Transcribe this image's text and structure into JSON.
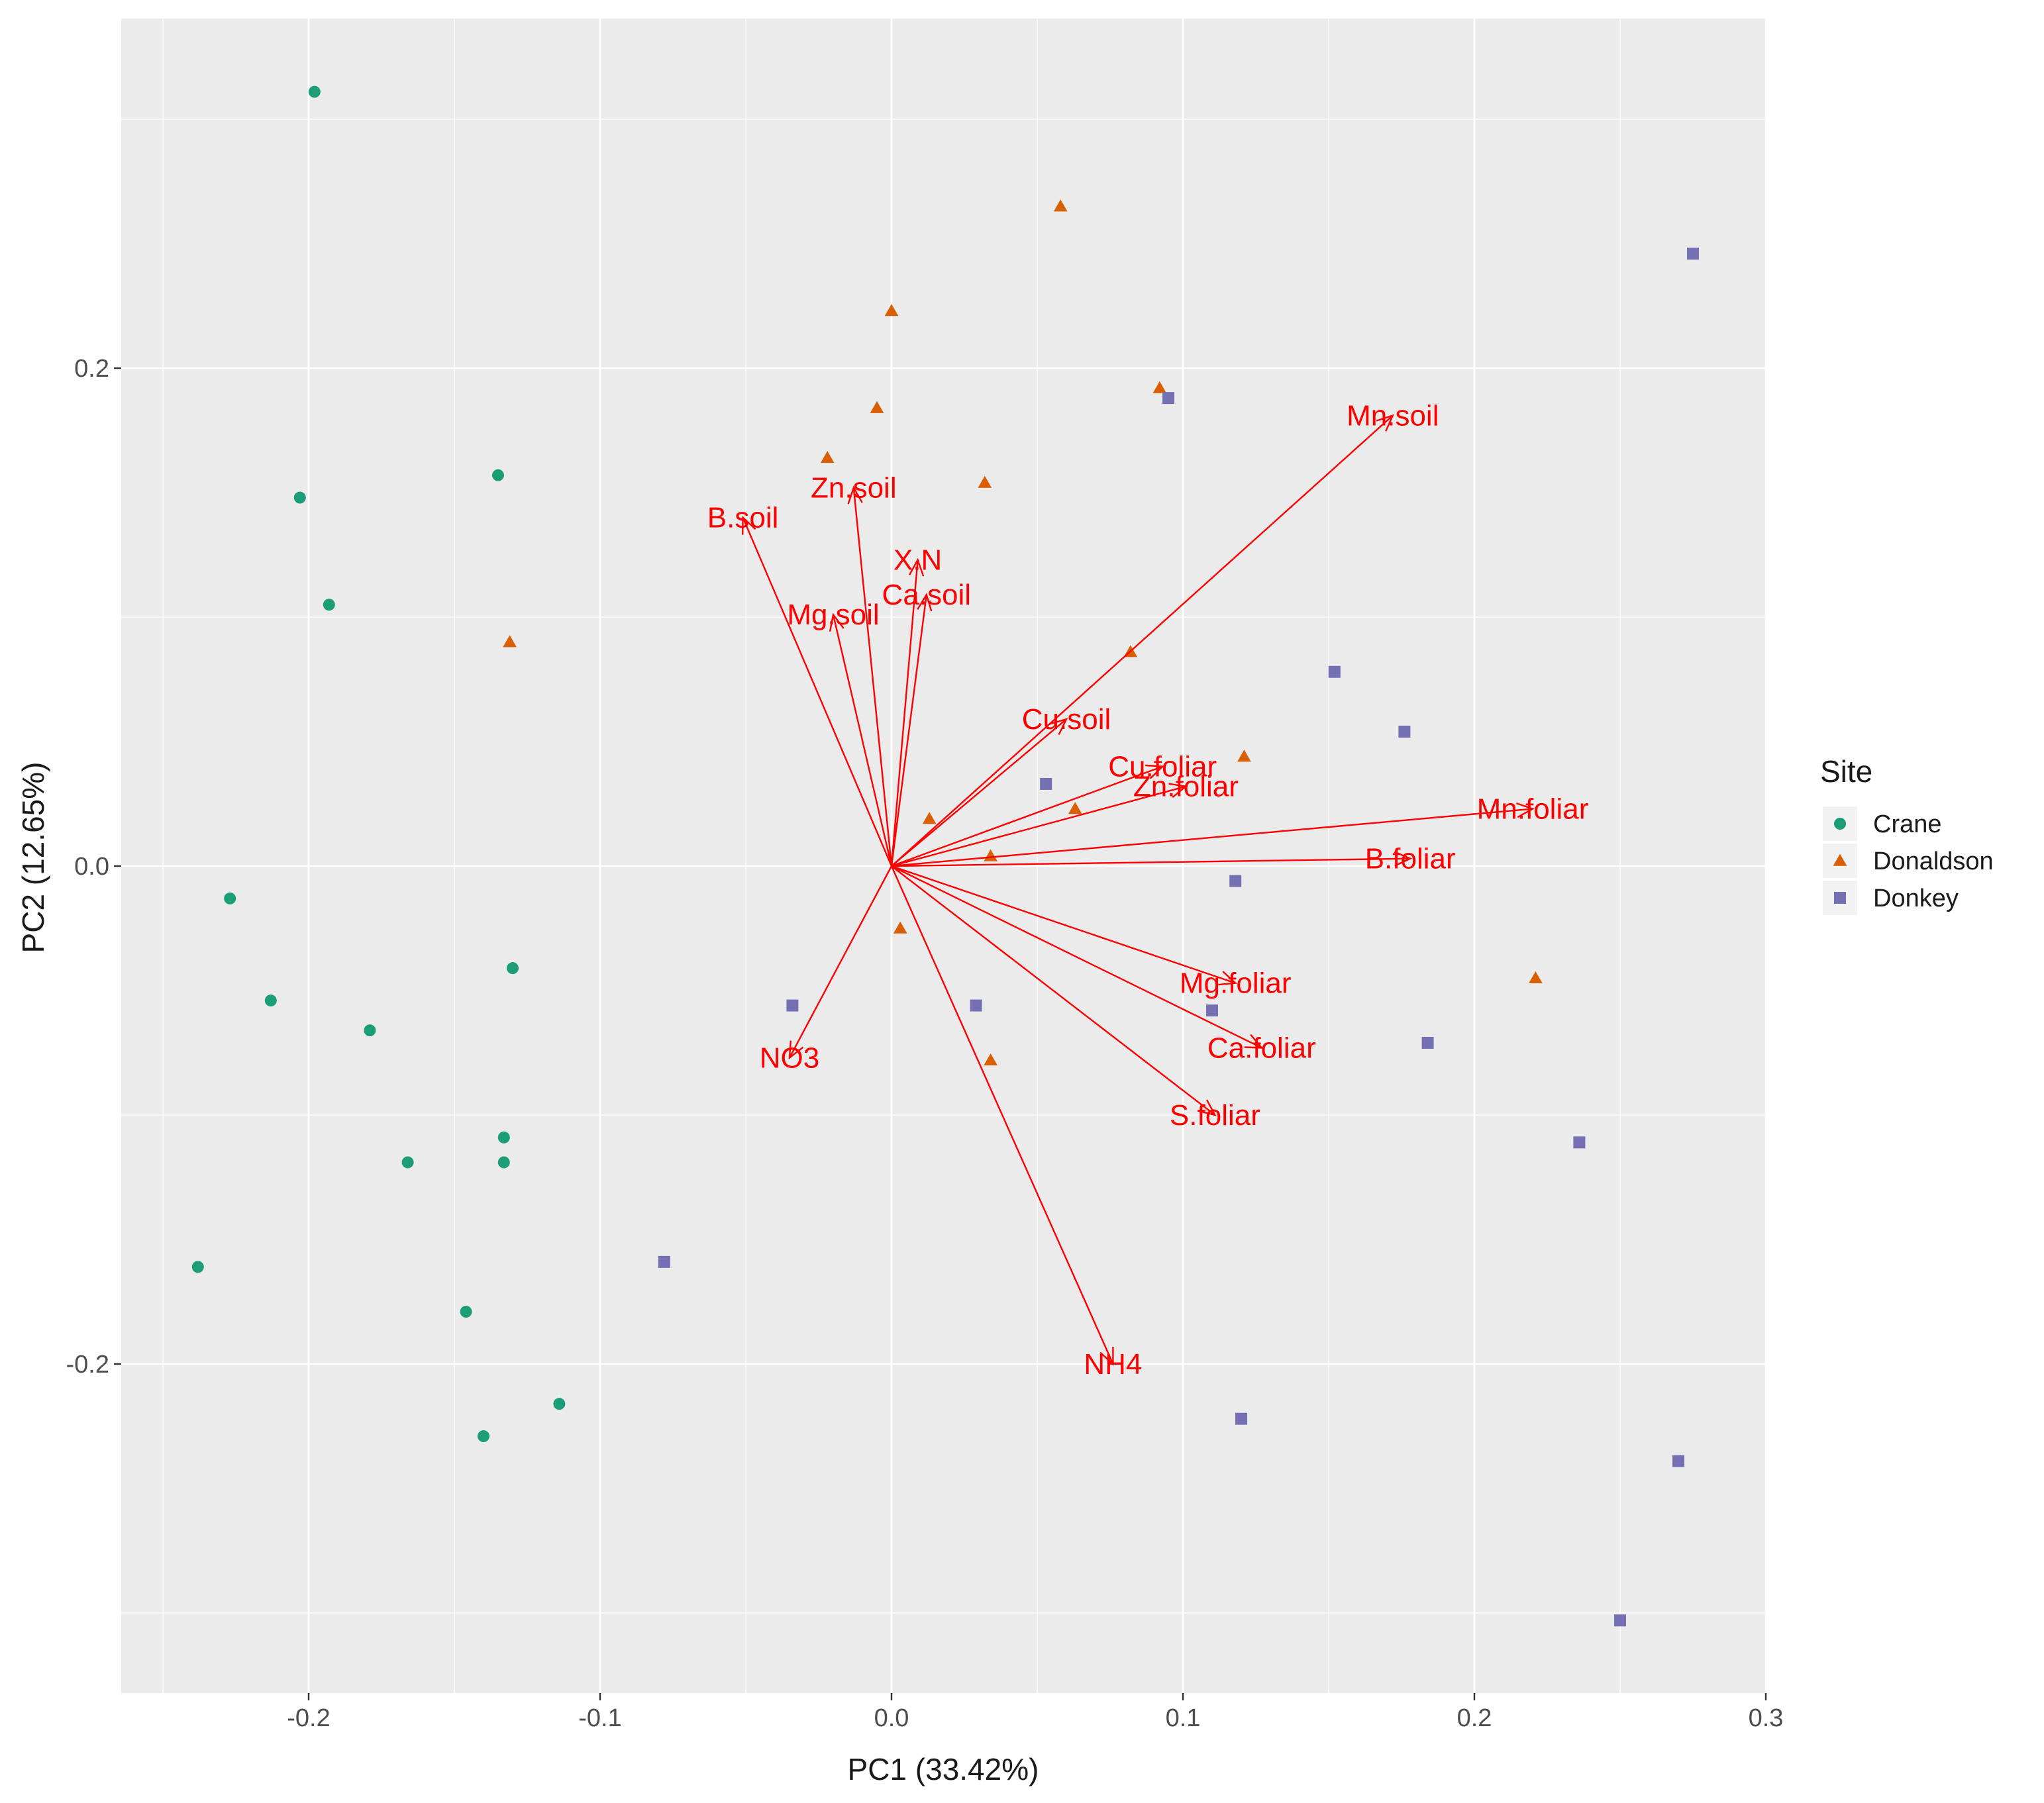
{
  "chart_data": {
    "type": "scatter",
    "subtype": "pca-biplot",
    "xlabel": "PC1 (33.42%)",
    "ylabel": "PC2 (12.65%)",
    "xlim": [
      -0.265,
      0.3
    ],
    "ylim": [
      -0.332,
      0.345
    ],
    "xticks": [
      -0.2,
      -0.1,
      0.0,
      0.1,
      0.2,
      0.3
    ],
    "xtick_labels": [
      "-0.2",
      "-0.1",
      "0.0",
      "0.1",
      "0.2",
      "0.3"
    ],
    "yticks": [
      -0.2,
      0.0,
      0.2
    ],
    "ytick_labels": [
      "-0.2",
      "0.0",
      "0.2"
    ],
    "grid": true,
    "legend": {
      "title": "Site",
      "position": "right",
      "entries": [
        {
          "label": "Crane",
          "color": "#1b9e77",
          "shape": "circle"
        },
        {
          "label": "Donaldson",
          "color": "#d95f02",
          "shape": "triangle"
        },
        {
          "label": "Donkey",
          "color": "#7570b3",
          "shape": "square"
        }
      ]
    },
    "series": [
      {
        "name": "Crane",
        "color": "#1b9e77",
        "shape": "circle",
        "points": [
          [
            -0.198,
            0.311
          ],
          [
            -0.203,
            0.148
          ],
          [
            -0.193,
            0.105
          ],
          [
            -0.135,
            0.157
          ],
          [
            -0.227,
            -0.013
          ],
          [
            -0.213,
            -0.054
          ],
          [
            -0.179,
            -0.066
          ],
          [
            -0.13,
            -0.041
          ],
          [
            -0.166,
            -0.119
          ],
          [
            -0.133,
            -0.109
          ],
          [
            -0.133,
            -0.119
          ],
          [
            -0.238,
            -0.161
          ],
          [
            -0.146,
            -0.179
          ],
          [
            -0.114,
            -0.216
          ],
          [
            -0.14,
            -0.229
          ]
        ]
      },
      {
        "name": "Donaldson",
        "color": "#d95f02",
        "shape": "triangle",
        "points": [
          [
            0.058,
            0.265
          ],
          [
            0.0,
            0.223
          ],
          [
            -0.005,
            0.184
          ],
          [
            0.092,
            0.192
          ],
          [
            -0.022,
            0.164
          ],
          [
            0.032,
            0.154
          ],
          [
            -0.131,
            0.09
          ],
          [
            0.082,
            0.086
          ],
          [
            0.121,
            0.044
          ],
          [
            0.063,
            0.023
          ],
          [
            0.013,
            0.019
          ],
          [
            0.034,
            0.004
          ],
          [
            0.003,
            -0.025
          ],
          [
            0.221,
            -0.045
          ],
          [
            0.034,
            -0.078
          ]
        ]
      },
      {
        "name": "Donkey",
        "color": "#7570b3",
        "shape": "square",
        "points": [
          [
            0.275,
            0.246
          ],
          [
            0.095,
            0.188
          ],
          [
            0.152,
            0.078
          ],
          [
            0.176,
            0.054
          ],
          [
            0.053,
            0.033
          ],
          [
            0.118,
            -0.006
          ],
          [
            -0.034,
            -0.056
          ],
          [
            0.029,
            -0.056
          ],
          [
            0.11,
            -0.058
          ],
          [
            0.184,
            -0.071
          ],
          [
            0.236,
            -0.111
          ],
          [
            -0.078,
            -0.159
          ],
          [
            0.12,
            -0.222
          ],
          [
            0.27,
            -0.239
          ],
          [
            0.25,
            -0.303
          ]
        ]
      }
    ],
    "loadings": {
      "color": "#ff0000",
      "vectors": [
        {
          "label": "Mn.soil",
          "x": 0.172,
          "y": 0.181
        },
        {
          "label": "Zn.soil",
          "x": -0.013,
          "y": 0.152
        },
        {
          "label": "B.soil",
          "x": -0.051,
          "y": 0.14
        },
        {
          "label": "X.N",
          "x": 0.009,
          "y": 0.123
        },
        {
          "label": "Ca.soil",
          "x": 0.012,
          "y": 0.109
        },
        {
          "label": "Mg.soil",
          "x": -0.02,
          "y": 0.101
        },
        {
          "label": "Cu.soil",
          "x": 0.06,
          "y": 0.059
        },
        {
          "label": "Cu.foliar",
          "x": 0.093,
          "y": 0.04
        },
        {
          "label": "Zn.foliar",
          "x": 0.101,
          "y": 0.032
        },
        {
          "label": "Mn.foliar",
          "x": 0.22,
          "y": 0.023
        },
        {
          "label": "B.foliar",
          "x": 0.178,
          "y": 0.003
        },
        {
          "label": "Mg.foliar",
          "x": 0.118,
          "y": -0.047
        },
        {
          "label": "Ca.foliar",
          "x": 0.127,
          "y": -0.073
        },
        {
          "label": "S.foliar",
          "x": 0.111,
          "y": -0.1
        },
        {
          "label": "NO3",
          "x": -0.035,
          "y": -0.077
        },
        {
          "label": "NH4",
          "x": 0.076,
          "y": -0.2
        }
      ]
    }
  }
}
